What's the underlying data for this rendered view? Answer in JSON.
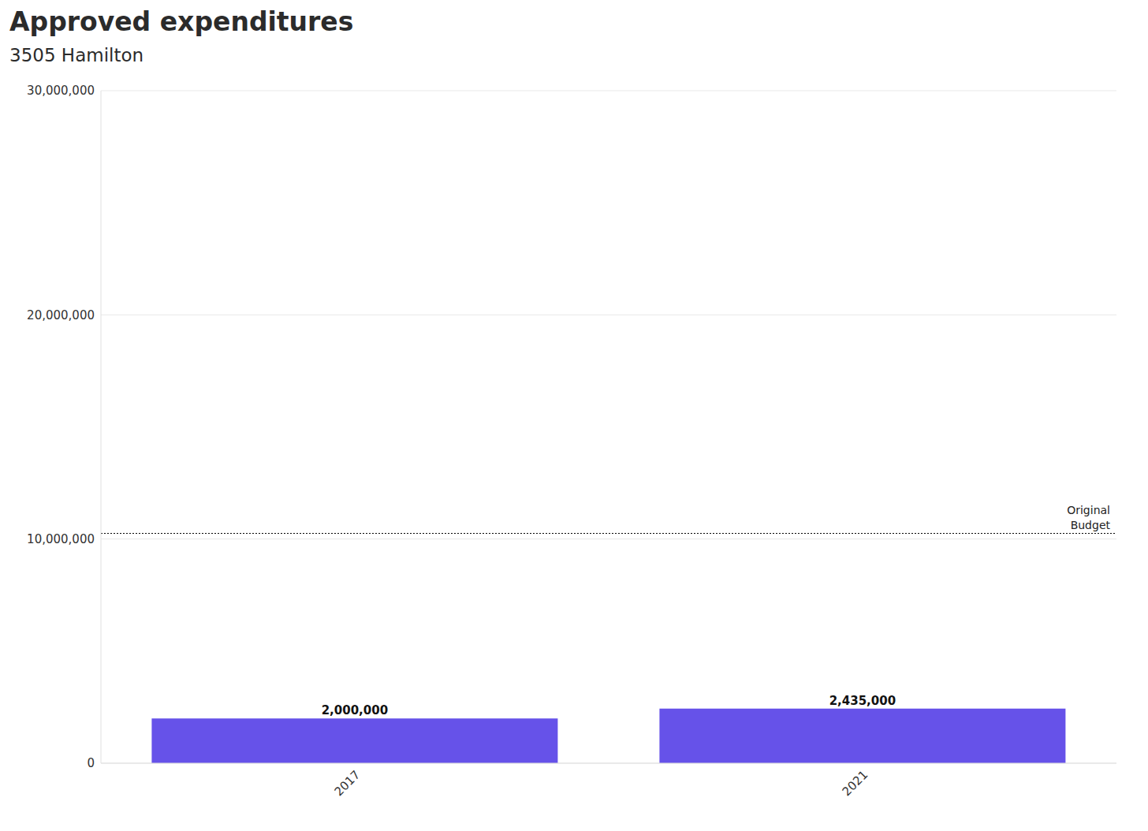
{
  "chart_data": {
    "type": "bar",
    "title": "Approved expenditures",
    "subtitle": "3505 Hamilton",
    "categories": [
      "2017",
      "2021"
    ],
    "values": [
      2000000,
      2435000
    ],
    "value_labels": [
      "2,000,000",
      "2,435,000"
    ],
    "data_labels": true,
    "color": "#6652e9",
    "ylim": [
      0,
      30000000
    ],
    "yticks": [
      0,
      {
        "value": 10000000,
        "label": "10,000,000"
      },
      {
        "value": 20000000,
        "label": "20,000,000"
      },
      {
        "value": 30000000,
        "label": "30,000,000"
      }
    ],
    "grid": true,
    "annotations": [
      {
        "y": 10250000,
        "text": "Original Budget"
      }
    ]
  }
}
